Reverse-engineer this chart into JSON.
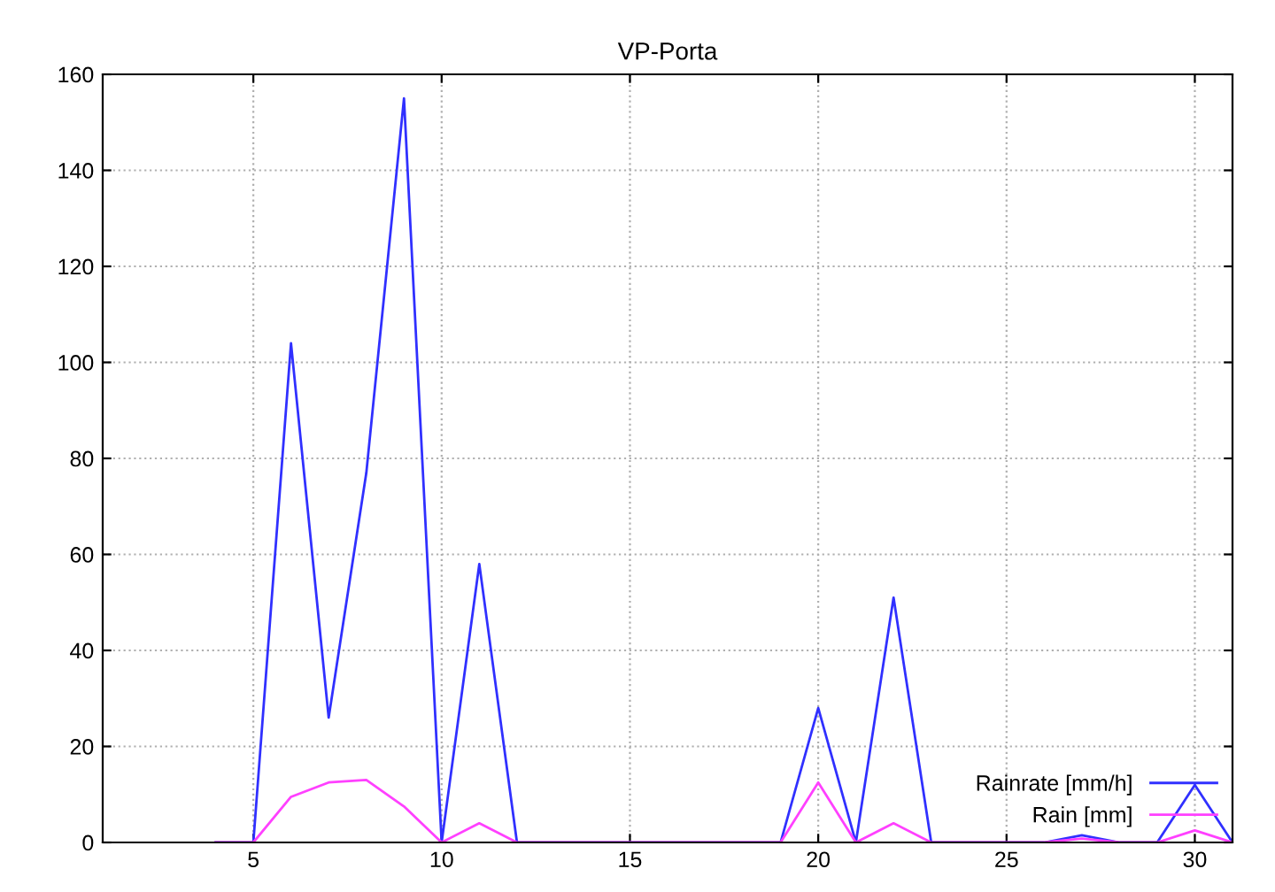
{
  "chart_data": {
    "type": "line",
    "title": "VP-Porta",
    "x": [
      4,
      5,
      6,
      7,
      8,
      9,
      10,
      11,
      12,
      13,
      14,
      15,
      16,
      17,
      18,
      19,
      20,
      21,
      22,
      23,
      24,
      25,
      26,
      27,
      28,
      29,
      30,
      31
    ],
    "series": [
      {
        "name": "Rainrate [mm/h]",
        "color": "#3030ff",
        "values": [
          0,
          0,
          104,
          26,
          77,
          155,
          0,
          58,
          0,
          0,
          0,
          0,
          0,
          0,
          0,
          0,
          28,
          0,
          51,
          0,
          0,
          0,
          0,
          1.5,
          0,
          0,
          12,
          0
        ]
      },
      {
        "name": "Rain [mm]",
        "color": "#ff40ff",
        "values": [
          0,
          0,
          9.5,
          12.5,
          13,
          7.5,
          0,
          4,
          0,
          0,
          0,
          0,
          0,
          0,
          0,
          0,
          12.5,
          0,
          4,
          0,
          0,
          0,
          0,
          0.8,
          0,
          0,
          2.5,
          0
        ]
      }
    ],
    "xlim": [
      1,
      31
    ],
    "xticks": [
      5,
      10,
      15,
      20,
      25,
      30
    ],
    "ylim": [
      0,
      160
    ],
    "yticks": [
      0,
      20,
      40,
      60,
      80,
      100,
      120,
      140,
      160
    ],
    "grid": true,
    "legend": "bottom right",
    "marker": "none",
    "line_style": "solid"
  }
}
